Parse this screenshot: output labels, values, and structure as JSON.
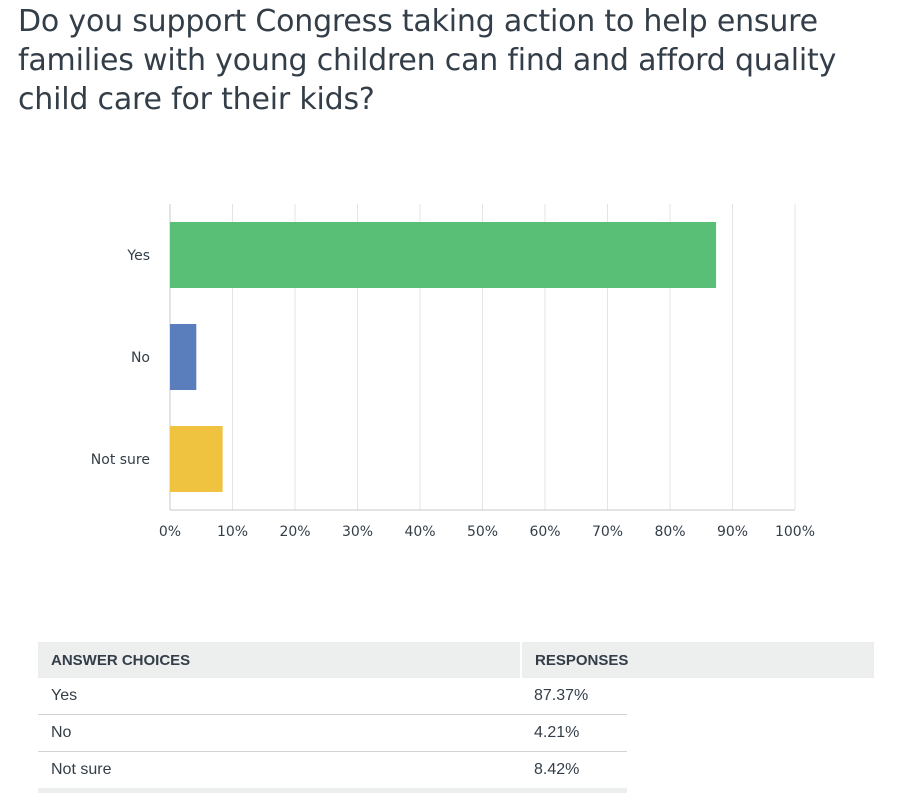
{
  "question": "Do you support Congress taking action to help ensure families with young children can find and afford quality child care for their kids?",
  "chart_data": {
    "type": "bar",
    "orientation": "horizontal",
    "categories": [
      "Yes",
      "No",
      "Not sure"
    ],
    "values": [
      87.37,
      4.21,
      8.42
    ],
    "colors": [
      "#59bf76",
      "#5a7ebb",
      "#efc240"
    ],
    "xlim": [
      0,
      100
    ],
    "xticks": [
      "0%",
      "10%",
      "20%",
      "30%",
      "40%",
      "50%",
      "60%",
      "70%",
      "80%",
      "90%",
      "100%"
    ],
    "grid": true,
    "legend": "none"
  },
  "table": {
    "headers": [
      "ANSWER CHOICES",
      "RESPONSES"
    ],
    "rows": [
      {
        "choice": "Yes",
        "response": "87.37%"
      },
      {
        "choice": "No",
        "response": "4.21%"
      },
      {
        "choice": "Not sure",
        "response": "8.42%"
      }
    ]
  }
}
